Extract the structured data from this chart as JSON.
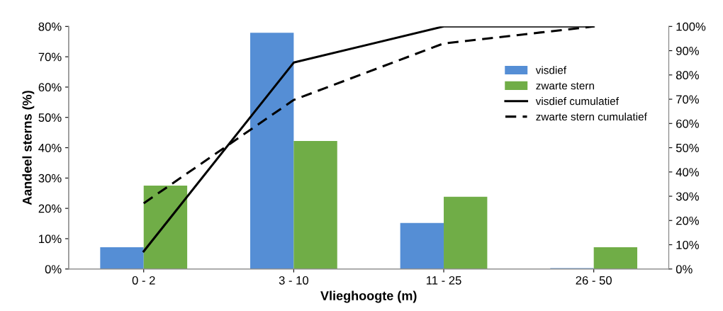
{
  "chart_data": {
    "type": "bar",
    "xlabel": "Vlieghoogte (m)",
    "ylabel": "Aandeel sterns (%)",
    "categories": [
      "0 - 2",
      "3 - 10",
      "11 - 25",
      "26 - 50"
    ],
    "series": [
      {
        "name": "visdief",
        "color": "#558ed5",
        "values": [
          7.2,
          77.9,
          15.2,
          0.3
        ]
      },
      {
        "name": "zwarte stern",
        "color": "#70ad47",
        "values": [
          27.5,
          42.2,
          23.8,
          7.2
        ]
      },
      {
        "name": "visdief cumulatief",
        "type": "line",
        "axis": "y2",
        "color": "#000000",
        "line_style": "solid",
        "values": [
          7.3,
          85.1,
          100,
          100
        ]
      },
      {
        "name": "zwarte stern cumulatief",
        "type": "line",
        "axis": "y2",
        "color": "#000000",
        "line_style": "dashed",
        "values": [
          27.1,
          69.7,
          93.0,
          100
        ]
      }
    ],
    "ylim": [
      0,
      80
    ],
    "yticks": [
      {
        "value": 0,
        "label": "0%"
      },
      {
        "value": 10,
        "label": "10%"
      },
      {
        "value": 20,
        "label": "20%"
      },
      {
        "value": 30,
        "label": "30%"
      },
      {
        "value": 40,
        "label": "40%"
      },
      {
        "value": 50,
        "label": "50%"
      },
      {
        "value": 60,
        "label": "60%"
      },
      {
        "value": 70,
        "label": "70%"
      },
      {
        "value": 80,
        "label": "80%"
      }
    ],
    "y2lim": [
      0,
      100
    ],
    "y2ticks": [
      {
        "value": 0,
        "label": "0%"
      },
      {
        "value": 10,
        "label": "10%"
      },
      {
        "value": 20,
        "label": "20%"
      },
      {
        "value": 30,
        "label": "30%"
      },
      {
        "value": 40,
        "label": "40%"
      },
      {
        "value": 50,
        "label": "50%"
      },
      {
        "value": 60,
        "label": "60%"
      },
      {
        "value": 70,
        "label": "70%"
      },
      {
        "value": 80,
        "label": "80%"
      },
      {
        "value": 90,
        "label": "90%"
      },
      {
        "value": 100,
        "label": "100%"
      }
    ],
    "legend": "right",
    "grid": false
  }
}
